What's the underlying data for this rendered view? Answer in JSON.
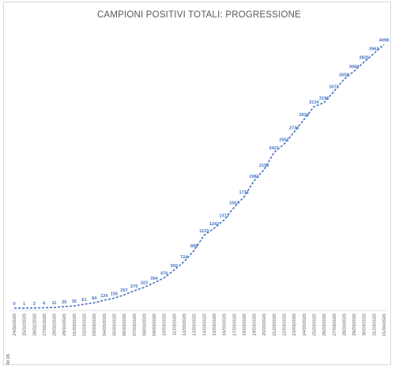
{
  "chart_data": {
    "type": "line",
    "title": "CAMPIONI POSITIVI TOTALI: PROGRESSIONE",
    "xlabel": "",
    "ylabel": "",
    "grid": false,
    "legend": "none",
    "first_tick_label": "40 06",
    "x": [
      "24/02/2020",
      "25/02/2020",
      "26/02/2020",
      "27/02/2020",
      "28/02/2020",
      "29/02/2020",
      "01/03/2020",
      "02/03/2020",
      "03/03/2020",
      "04/03/2020",
      "05/03/2020",
      "06/03/2020",
      "07/03/2020",
      "08/03/2020",
      "09/03/2020",
      "10/03/2020",
      "11/03/2020",
      "12/03/2020",
      "13/03/2020",
      "14/03/2020",
      "15/03/2020",
      "16/03/2020",
      "17/03/2020",
      "18/03/2020",
      "19/03/2020",
      "20/03/2020",
      "21/03/2020",
      "22/03/2020",
      "23/03/2020",
      "24/03/2020",
      "25/03/2020",
      "26/03/2020",
      "27/03/2020",
      "28/03/2020",
      "29/03/2020",
      "30/03/2020",
      "31/03/2020",
      "01/04/2020"
    ],
    "series": [
      {
        "color": "#4472c4",
        "values": [
          0,
          1,
          3,
          6,
          11,
          25,
          35,
          61,
          84,
          124,
          155,
          207,
          270,
          323,
          394,
          470,
          592,
          724,
          898,
          1133,
          1242,
          1371,
          1567,
          1731,
          1981,
          2153,
          2421,
          2551,
          2736,
          2934,
          3134,
          3196,
          3371,
          3558,
          3684,
          3825,
          3962,
          4098
        ]
      }
    ],
    "ylim": [
      0,
      4300
    ]
  }
}
